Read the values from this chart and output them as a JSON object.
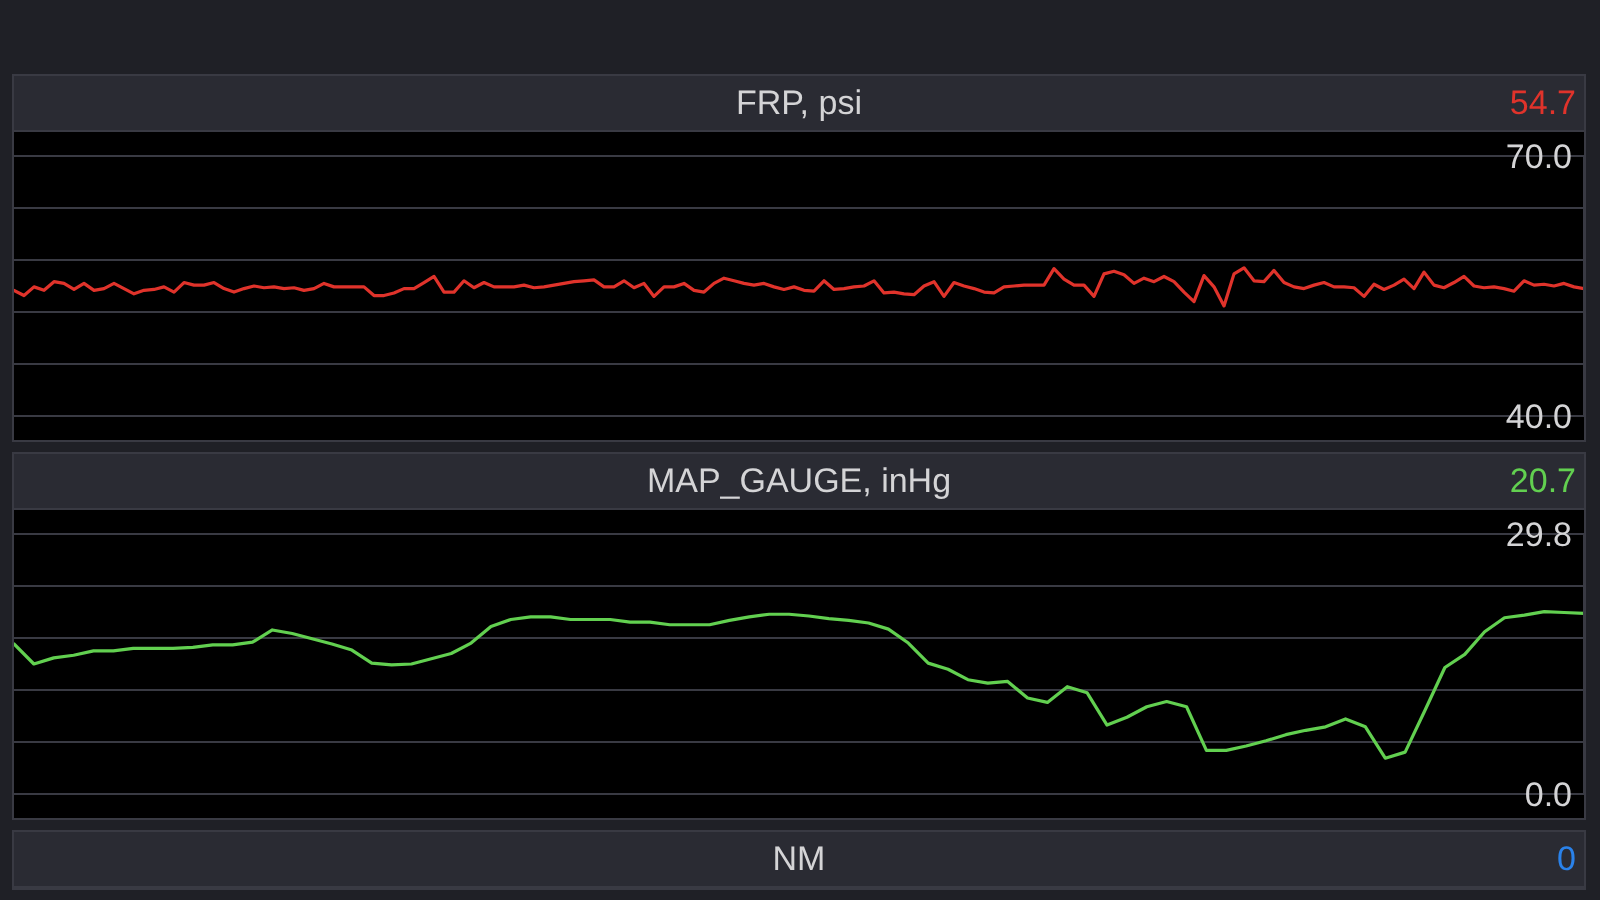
{
  "chart_data": [
    {
      "type": "line",
      "title": "FRP, psi",
      "annotations": [
        "54.7"
      ],
      "tick_labels": "y",
      "grid": "y",
      "categories": [
        null,
        null,
        null,
        null,
        null,
        null,
        null,
        null,
        null,
        null,
        null,
        null,
        null,
        null,
        null,
        null,
        null,
        null,
        null,
        null,
        null,
        null,
        null,
        null,
        null,
        null,
        null,
        null,
        null,
        null,
        null,
        null,
        null,
        null,
        null,
        null,
        null,
        null,
        null,
        null,
        null,
        null,
        null,
        null,
        null,
        null,
        null,
        null,
        null,
        null,
        null,
        null,
        null,
        null,
        null,
        null,
        null,
        null,
        null,
        null,
        null,
        null,
        null,
        null,
        null,
        null,
        null,
        null,
        null,
        null,
        null,
        null,
        null,
        null,
        null,
        null,
        null,
        null,
        null,
        null,
        null,
        null,
        null,
        null,
        null,
        null,
        null,
        null,
        null,
        null,
        null,
        null,
        null,
        null,
        null,
        null,
        null,
        null,
        null,
        null,
        null,
        null,
        null,
        null,
        null,
        null,
        null,
        null,
        null,
        null,
        null,
        null,
        null,
        null,
        null,
        null,
        null,
        null,
        null,
        null,
        null,
        null,
        null,
        null,
        null,
        null,
        null,
        null,
        null,
        null,
        null,
        null,
        null,
        null,
        null,
        null,
        null,
        null,
        null,
        null,
        null,
        null,
        null,
        null,
        null,
        null,
        null,
        null,
        null,
        null,
        null,
        null,
        null,
        null,
        null,
        null,
        null,
        null
      ],
      "series": [
        {
          "color": "#e0332b",
          "values": [
            54.5,
            53.9,
            54.9,
            54.5,
            55.5,
            55.3,
            54.6,
            55.3,
            54.5,
            54.7,
            55.3,
            54.7,
            54.1,
            54.5,
            54.6,
            54.9,
            54.3,
            55.4,
            55.1,
            55.1,
            55.4,
            54.7,
            54.3,
            54.7,
            55.0,
            54.8,
            54.9,
            54.7,
            54.8,
            54.5,
            54.7,
            55.3,
            54.9,
            54.9,
            54.9,
            54.9,
            53.9,
            53.9,
            54.2,
            54.7,
            54.7,
            55.4,
            56.1,
            54.3,
            54.3,
            55.6,
            54.8,
            55.4,
            54.9,
            54.9,
            54.9,
            55.1,
            54.8,
            54.9,
            55.1,
            55.3,
            55.5,
            55.6,
            55.7,
            54.9,
            54.9,
            55.6,
            54.8,
            55.3,
            53.8,
            54.9,
            54.9,
            55.3,
            54.5,
            54.3,
            55.3,
            55.9,
            55.6,
            55.3,
            55.1,
            55.3,
            54.9,
            54.6,
            54.9,
            54.5,
            54.4,
            55.6,
            54.6,
            54.7,
            54.9,
            55.0,
            55.6,
            54.2,
            54.3,
            54.1,
            54.0,
            55.0,
            55.5,
            53.8,
            55.4,
            55.0,
            54.7,
            54.3,
            54.2,
            54.9,
            55.0,
            55.1,
            55.1,
            55.1,
            57.0,
            55.8,
            55.1,
            55.1,
            53.8,
            56.4,
            56.7,
            56.3,
            55.3,
            55.9,
            55.5,
            56.1,
            55.5,
            54.3,
            53.2,
            56.2,
            54.9,
            52.7,
            56.4,
            57.1,
            55.6,
            55.5,
            56.8,
            55.4,
            54.9,
            54.7,
            55.1,
            55.4,
            54.9,
            54.9,
            54.8,
            53.8,
            55.2,
            54.6,
            55.1,
            55.8,
            54.7,
            56.6,
            55.1,
            54.8,
            55.4,
            56.1,
            55.0,
            54.8,
            54.9,
            54.7,
            54.4,
            55.6,
            55.1,
            55.2,
            55.0,
            55.3,
            54.9,
            54.7
          ]
        }
      ],
      "ylim": [
        40,
        70
      ],
      "yticks": [
        {
          "value": 40,
          "label": "40.0"
        },
        {
          "value": 46,
          "label": null
        },
        {
          "value": 52,
          "label": null
        },
        {
          "value": 58,
          "label": null
        },
        {
          "value": 64,
          "label": null
        },
        {
          "value": 70,
          "label": "70.0"
        }
      ]
    },
    {
      "type": "line",
      "title": "MAP_GAUGE, inHg",
      "annotations": [
        "20.7"
      ],
      "tick_labels": "y",
      "grid": "y",
      "categories": [
        null,
        null,
        null,
        null,
        null,
        null,
        null,
        null,
        null,
        null,
        null,
        null,
        null,
        null,
        null,
        null,
        null,
        null,
        null,
        null,
        null,
        null,
        null,
        null,
        null,
        null,
        null,
        null,
        null,
        null,
        null,
        null,
        null,
        null,
        null,
        null,
        null,
        null,
        null,
        null,
        null,
        null,
        null,
        null,
        null,
        null,
        null,
        null,
        null,
        null,
        null,
        null,
        null,
        null,
        null,
        null,
        null,
        null,
        null,
        null,
        null,
        null,
        null,
        null,
        null,
        null,
        null,
        null,
        null,
        null,
        null,
        null,
        null,
        null,
        null,
        null,
        null,
        null,
        null,
        null
      ],
      "series": [
        {
          "color": "#62d050",
          "values": [
            17.2,
            14.9,
            15.6,
            15.9,
            16.4,
            16.4,
            16.7,
            16.7,
            16.7,
            16.8,
            17.1,
            17.1,
            17.4,
            18.8,
            18.4,
            17.8,
            17.2,
            16.5,
            15.0,
            14.8,
            14.9,
            15.5,
            16.1,
            17.3,
            19.2,
            20.0,
            20.3,
            20.3,
            20.0,
            20.0,
            20.0,
            19.7,
            19.7,
            19.4,
            19.4,
            19.4,
            19.9,
            20.3,
            20.6,
            20.6,
            20.4,
            20.1,
            19.9,
            19.6,
            18.9,
            17.3,
            15.0,
            14.3,
            13.1,
            12.7,
            12.9,
            11.0,
            10.5,
            12.3,
            11.6,
            7.9,
            8.8,
            10.0,
            10.6,
            10.0,
            5.0,
            5.0,
            5.5,
            6.1,
            6.8,
            7.3,
            7.7,
            8.6,
            7.7,
            4.1,
            4.8,
            9.6,
            14.5,
            16.0,
            18.6,
            20.2,
            20.5,
            20.9,
            20.8,
            20.7
          ]
        }
      ],
      "ylim": [
        0,
        29.8
      ],
      "yticks": [
        {
          "value": 0,
          "label": "0.0"
        },
        {
          "value": 5.96,
          "label": null
        },
        {
          "value": 11.92,
          "label": null
        },
        {
          "value": 17.88,
          "label": null
        },
        {
          "value": 23.84,
          "label": null
        },
        {
          "value": 29.8,
          "label": "29.8"
        }
      ]
    },
    {
      "type": "other",
      "title": "NM",
      "annotations": [
        "0"
      ],
      "color": "#2a82ea"
    }
  ]
}
